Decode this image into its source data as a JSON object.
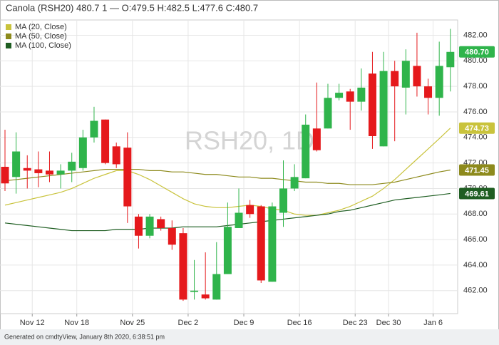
{
  "chart_data": {
    "type": "candlestick",
    "title": "Canola (RSH20) 480.7 1 — O:479.5 H:482.5 L:477.6 C:480.7",
    "watermark": "RSH20, 1D",
    "footer": "Generated on cmdtyView, January 8th 2020, 6:38:51 pm",
    "categories": [
      null,
      null,
      "Nov 12",
      null,
      null,
      null,
      "Nov 18",
      null,
      null,
      null,
      null,
      "Nov 25",
      null,
      null,
      null,
      null,
      "Dec 2",
      null,
      null,
      null,
      null,
      "Dec 9",
      null,
      null,
      null,
      null,
      "Dec 16",
      null,
      null,
      null,
      null,
      "Dec 23",
      null,
      null,
      "Dec 30",
      null,
      null,
      null,
      "Jan 6",
      null,
      null
    ],
    "open": [
      471.7,
      470.9,
      471.6,
      471.5,
      471.4,
      471.1,
      471.4,
      471.6,
      474.0,
      475.4,
      473.3,
      473.2,
      467.8,
      466.3,
      467.6,
      466.9,
      466.5,
      461.9,
      461.7,
      461.3,
      463.3,
      466.9,
      468.7,
      468.6,
      462.7,
      468.1,
      470.0,
      470.8,
      474.7,
      474.7,
      477.1,
      477.6,
      476.8,
      479.0,
      473.3,
      479.2,
      477.9,
      479.6,
      478.0,
      477.1,
      479.5
    ],
    "high": [
      474.6,
      474.4,
      472.6,
      472.9,
      472.9,
      471.9,
      472.8,
      474.6,
      476.4,
      475.4,
      473.6,
      474.4,
      468.0,
      468.0,
      467.8,
      467.5,
      466.9,
      464.4,
      465.0,
      465.8,
      468.9,
      470.0,
      469.1,
      468.7,
      468.9,
      472.2,
      471.9,
      475.8,
      478.3,
      478.2,
      478.2,
      477.8,
      479.4,
      480.7,
      480.7,
      480.0,
      480.9,
      482.2,
      478.6,
      481.5,
      482.5
    ],
    "low": [
      469.8,
      469.6,
      470.0,
      470.1,
      470.5,
      470.0,
      470.5,
      471.4,
      473.6,
      471.9,
      471.6,
      467.3,
      465.3,
      466.1,
      466.7,
      465.2,
      461.2,
      461.3,
      461.3,
      461.3,
      463.3,
      466.9,
      467.7,
      462.6,
      462.7,
      467.0,
      469.8,
      470.8,
      472.9,
      474.7,
      476.9,
      474.6,
      476.1,
      473.1,
      473.3,
      473.7,
      475.8,
      477.2,
      475.8,
      475.7,
      477.6
    ],
    "close": [
      470.4,
      472.9,
      471.4,
      471.2,
      471.1,
      471.4,
      472.1,
      474.0,
      475.3,
      472.0,
      471.9,
      468.6,
      466.3,
      467.8,
      466.9,
      465.6,
      461.3,
      462.0,
      461.4,
      463.3,
      467.0,
      468.1,
      468.0,
      462.8,
      468.6,
      470.0,
      470.9,
      475.0,
      473.0,
      477.1,
      477.5,
      476.8,
      477.9,
      474.1,
      479.2,
      478.0,
      480.0,
      478.0,
      477.1,
      479.6,
      480.7
    ],
    "last_label": "480.70",
    "up_color": "#2fb44b",
    "down_color": "#e5191c",
    "series": [
      {
        "name": "MA (20, Close)",
        "color": "#c9c33c",
        "values": [
          468.7,
          468.9,
          469.1,
          469.3,
          469.5,
          469.7,
          470.0,
          470.4,
          470.8,
          471.1,
          471.4,
          471.4,
          471.1,
          470.7,
          470.2,
          469.7,
          469.2,
          468.8,
          468.6,
          468.5,
          468.5,
          468.6,
          468.7,
          468.6,
          468.4,
          468.3,
          468.0,
          467.9,
          467.9,
          468.1,
          468.3,
          468.6,
          469.0,
          469.4,
          470.0,
          470.7,
          471.5,
          472.3,
          473.1,
          473.9,
          474.73
        ]
      },
      {
        "name": "MA (50, Close)",
        "color": "#8d8a1c",
        "values": [
          470.6,
          470.7,
          470.8,
          470.9,
          471.0,
          471.1,
          471.2,
          471.3,
          471.4,
          471.5,
          471.5,
          471.5,
          471.5,
          471.4,
          471.4,
          471.3,
          471.3,
          471.2,
          471.1,
          471.1,
          471.0,
          470.9,
          470.9,
          470.8,
          470.8,
          470.7,
          470.6,
          470.5,
          470.5,
          470.4,
          470.4,
          470.3,
          470.3,
          470.3,
          470.4,
          470.5,
          470.7,
          470.9,
          471.1,
          471.3,
          471.45
        ]
      },
      {
        "name": "MA (100, Close)",
        "color": "#1f5e22",
        "values": [
          467.3,
          467.2,
          467.1,
          467.0,
          466.9,
          466.8,
          466.7,
          466.7,
          466.7,
          466.7,
          466.8,
          466.8,
          466.8,
          466.9,
          466.9,
          466.9,
          467.0,
          467.0,
          467.0,
          467.0,
          467.1,
          467.2,
          467.3,
          467.4,
          467.5,
          467.6,
          467.7,
          467.8,
          467.9,
          468.0,
          468.2,
          468.3,
          468.5,
          468.7,
          468.9,
          469.1,
          469.2,
          469.3,
          469.4,
          469.5,
          469.61
        ]
      }
    ],
    "ylim": [
      460.2,
      483.2
    ],
    "yticks": [
      {
        "value": 462,
        "label": "462.00"
      },
      {
        "value": 464,
        "label": "464.00"
      },
      {
        "value": 466,
        "label": "466.00"
      },
      {
        "value": 468,
        "label": "468.00"
      },
      {
        "value": 470,
        "label": "470.00"
      },
      {
        "value": 472,
        "label": "472.00"
      },
      {
        "value": 474,
        "label": "474.00"
      },
      {
        "value": 476,
        "label": "476.00"
      },
      {
        "value": 478,
        "label": "478.00"
      },
      {
        "value": 480,
        "label": "480.00"
      },
      {
        "value": 482,
        "label": "482.00"
      }
    ],
    "grid": true,
    "legend": "top-left"
  }
}
